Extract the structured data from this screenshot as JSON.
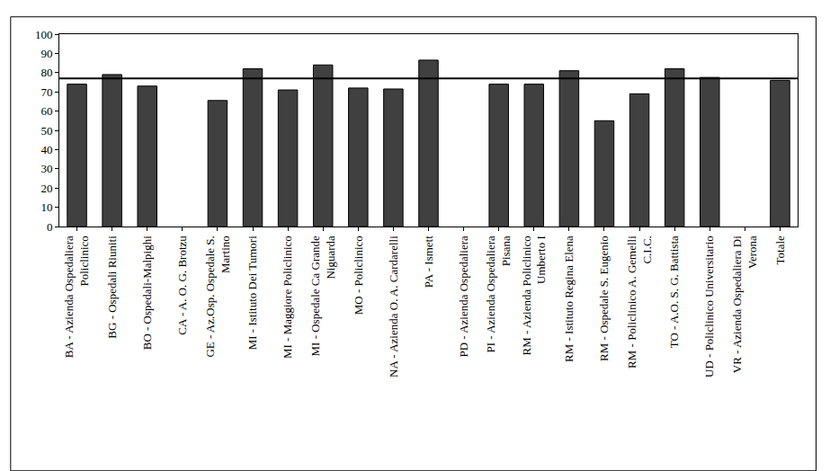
{
  "chart_data": {
    "type": "bar",
    "categories": [
      "BA - Azienda Ospedaliera Policlinico",
      "BG - Ospedali Riuniti",
      "BO - Ospedali-Malpighi",
      "CA - A. O. G. Brotzu",
      "GE - Az.Osp. Ospedale S. Martino",
      "MI - Istituto Dei Tumori",
      "MI - Maggiore Policlinico",
      "MI - Ospedale Ca Grande Niguarda",
      "MO - Policlinico",
      "NA - Azienda O. A. Cardarelli",
      "PA - Ismett",
      "PD - Azienda Ospedaliera",
      "PI - Azienda Ospedaliera Pisana",
      "RM - Azienda Policlinico Umberto I",
      "RM - Istituto Regina Elena",
      "RM - Ospedale S. Eugenio",
      "RM - Policlinico A. Gemelli C.I.C.",
      "TO - A.O. S. G. Battista",
      "UD - Policlinico Universitario",
      "VR - Azienda Ospedaliera Di Verona",
      "Totale"
    ],
    "values": [
      74,
      79,
      73,
      null,
      65.5,
      82,
      71,
      84,
      72,
      71.5,
      86.5,
      null,
      74,
      74,
      81,
      55,
      69,
      82,
      77.5,
      null,
      76
    ],
    "color": "#404040",
    "reference_line": 77,
    "ylim": [
      0,
      100
    ],
    "yticks": [
      0,
      10,
      20,
      30,
      40,
      50,
      60,
      70,
      80,
      90,
      100
    ],
    "grid": false
  }
}
